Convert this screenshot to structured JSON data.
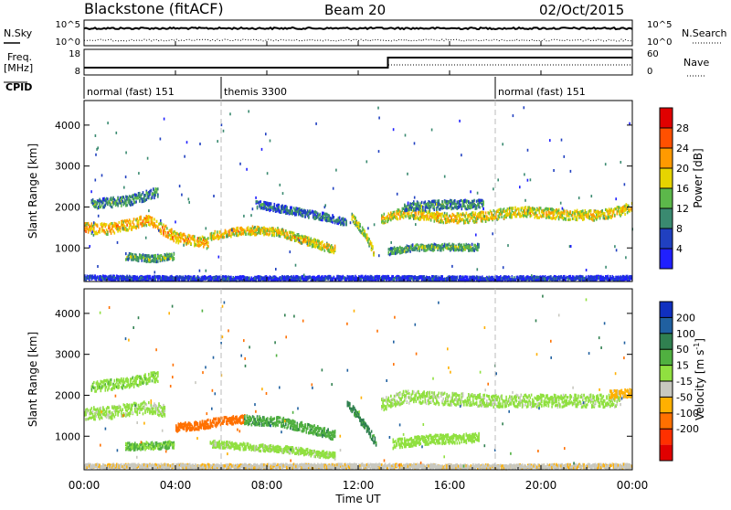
{
  "header": {
    "station": "Blackstone (fitACF)",
    "beam": "Beam 20",
    "date": "02/Oct/2015"
  },
  "summary_panels": {
    "nsky_label": "N.Sky",
    "nsearch_label": "N.Search",
    "freq_label_1": "Freq.",
    "freq_label_2": "[MHz]",
    "nave_label": "Nave",
    "cpid_label": "CPID",
    "noise_ticks": [
      "10^5",
      "10^0"
    ],
    "freq_ticks": [
      "18",
      "8"
    ],
    "nave_ticks": [
      "60",
      "0"
    ]
  },
  "cpid_segments": [
    {
      "label": "normal (fast) 151",
      "start_h": 0,
      "end_h": 6
    },
    {
      "label": "themis 3300",
      "start_h": 6,
      "end_h": 18
    },
    {
      "label": "normal (fast) 151",
      "start_h": 18,
      "end_h": 24
    }
  ],
  "axes": {
    "ylabel": "Slant Range [km]",
    "xlabel": "Time UT",
    "x_ticks": [
      "00:00",
      "04:00",
      "08:00",
      "12:00",
      "16:00",
      "20:00",
      "00:00"
    ],
    "y_ticks": [
      "1000",
      "2000",
      "3000",
      "4000"
    ]
  },
  "colorbars": {
    "power": {
      "label": "Power [dB]",
      "ticks": [
        "4",
        "8",
        "12",
        "16",
        "20",
        "24",
        "28"
      ],
      "colors": [
        "#2020ff",
        "#2040c0",
        "#3a8a70",
        "#5cb84a",
        "#e6d400",
        "#ff9a00",
        "#ff5000",
        "#e00000"
      ]
    },
    "velocity": {
      "label": "Velocity [m s",
      "label_sup": "-1",
      "label_end": "]",
      "ticks": [
        "200",
        "100",
        "50",
        "15",
        "-15",
        "-50",
        "-100",
        "-200"
      ],
      "colors": [
        "#1030c0",
        "#2060a0",
        "#308050",
        "#50b040",
        "#90e040",
        "#c8c8c0",
        "#ffb000",
        "#ff7000",
        "#ff3000",
        "#e00000"
      ]
    }
  },
  "chart_data": [
    {
      "type": "heatmap",
      "title": "Power",
      "x_range_h": [
        0,
        24
      ],
      "ylim": [
        180,
        4600
      ],
      "bands": [
        {
          "x": [
            0,
            1,
            2,
            2.8,
            3.2,
            4,
            5,
            5.4
          ],
          "y": [
            1480,
            1450,
            1560,
            1680,
            1520,
            1250,
            1150,
            1100
          ],
          "w": 260,
          "value": 22
        },
        {
          "x": [
            0.3,
            2,
            3.2
          ],
          "y": [
            2050,
            2150,
            2350
          ],
          "w": 230,
          "value": 12
        },
        {
          "x": [
            1.8,
            3,
            3.9
          ],
          "y": [
            780,
            720,
            780
          ],
          "w": 160,
          "value": 14
        },
        {
          "x": [
            5.5,
            7,
            8.5,
            9.5,
            10.5,
            11
          ],
          "y": [
            1280,
            1420,
            1380,
            1200,
            1020,
            950
          ],
          "w": 200,
          "value": 20
        },
        {
          "x": [
            7.5,
            9,
            10.5,
            11.5
          ],
          "y": [
            2050,
            1900,
            1750,
            1600
          ],
          "w": 180,
          "value": 10
        },
        {
          "x": [
            11.7,
            12.3,
            12.7
          ],
          "y": [
            1750,
            1300,
            850
          ],
          "w": 180,
          "value": 18
        },
        {
          "x": [
            13,
            14,
            16,
            17.5,
            19,
            21,
            22.5,
            23.5,
            24
          ],
          "y": [
            1700,
            1850,
            1700,
            1750,
            1880,
            1800,
            1780,
            1900,
            2000
          ],
          "w": 240,
          "value": 20
        },
        {
          "x": [
            14,
            16,
            17.5
          ],
          "y": [
            2000,
            2050,
            2050
          ],
          "w": 220,
          "value": 12
        },
        {
          "x": [
            13.3,
            14.5,
            16,
            17.3
          ],
          "y": [
            900,
            1000,
            1010,
            1000
          ],
          "w": 160,
          "value": 14
        },
        {
          "x": [
            0,
            6,
            12,
            18,
            24
          ],
          "y": [
            260,
            240,
            250,
            240,
            250
          ],
          "w": 100,
          "value": 6
        }
      ]
    },
    {
      "type": "heatmap",
      "title": "Velocity",
      "x_range_h": [
        0,
        24
      ],
      "ylim": [
        180,
        4600
      ],
      "bands": [
        {
          "x": [
            0,
            1,
            2,
            2.8,
            3.5
          ],
          "y": [
            1550,
            1550,
            1650,
            1700,
            1600
          ],
          "w": 300,
          "value": -5
        },
        {
          "x": [
            0.3,
            2,
            3.2
          ],
          "y": [
            2200,
            2300,
            2450
          ],
          "w": 250,
          "value": 5
        },
        {
          "x": [
            1.8,
            3,
            3.9
          ],
          "y": [
            730,
            760,
            780
          ],
          "w": 180,
          "value": 20
        },
        {
          "x": [
            4,
            5,
            6,
            7
          ],
          "y": [
            1200,
            1250,
            1350,
            1400
          ],
          "w": 200,
          "value": -120
        },
        {
          "x": [
            7,
            8.5,
            10,
            11
          ],
          "y": [
            1380,
            1350,
            1150,
            1000
          ],
          "w": 220,
          "value": 40
        },
        {
          "x": [
            5.5,
            9,
            11
          ],
          "y": [
            800,
            650,
            500
          ],
          "w": 160,
          "value": -3
        },
        {
          "x": [
            11.5,
            12.2,
            12.8
          ],
          "y": [
            1800,
            1300,
            800
          ],
          "w": 200,
          "value": 60
        },
        {
          "x": [
            13,
            14,
            16,
            18,
            20,
            22,
            23.5
          ],
          "y": [
            1750,
            1950,
            1900,
            1850,
            1850,
            1850,
            1850
          ],
          "w": 300,
          "value": -5
        },
        {
          "x": [
            13.5,
            15,
            17.3
          ],
          "y": [
            800,
            900,
            950
          ],
          "w": 220,
          "value": 0
        },
        {
          "x": [
            23,
            24
          ],
          "y": [
            2000,
            2050
          ],
          "w": 200,
          "value": -60
        },
        {
          "x": [
            0,
            6,
            12,
            18,
            24
          ],
          "y": [
            260,
            250,
            260,
            240,
            260
          ],
          "w": 100,
          "value": -40
        }
      ]
    }
  ]
}
